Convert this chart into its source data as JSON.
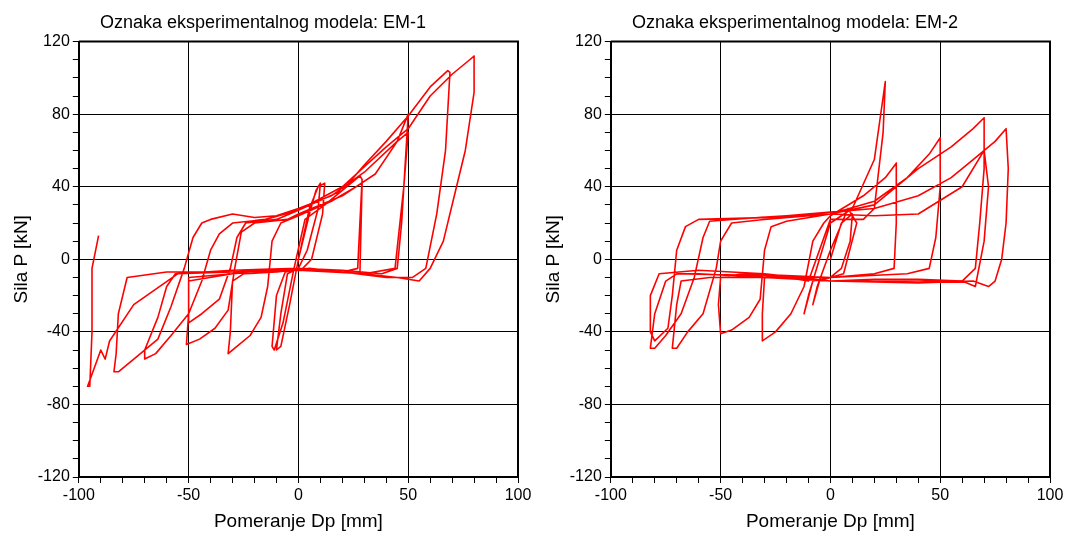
{
  "chart_data": [
    {
      "type": "line",
      "title": "Oznaka eksperimentalnog modela: EM-1",
      "xlabel": "Pomeranje Dp [mm]",
      "ylabel": "Sila P [kN]",
      "xlim": [
        -100,
        100
      ],
      "ylim": [
        -120,
        120
      ],
      "xticks": [
        -100,
        {
          "value": -90,
          "label": null
        },
        {
          "value": -80,
          "label": null
        },
        {
          "value": -70,
          "label": null
        },
        {
          "value": -60,
          "label": null
        },
        -50,
        {
          "value": -40,
          "label": null
        },
        {
          "value": -30,
          "label": null
        },
        {
          "value": -20,
          "label": null
        },
        {
          "value": -10,
          "label": null
        },
        0,
        {
          "value": 10,
          "label": null
        },
        {
          "value": 20,
          "label": null
        },
        {
          "value": 30,
          "label": null
        },
        {
          "value": 40,
          "label": null
        },
        50,
        {
          "value": 60,
          "label": null
        },
        {
          "value": 70,
          "label": null
        },
        {
          "value": 80,
          "label": null
        },
        {
          "value": 90,
          "label": null
        },
        100
      ],
      "yticks": [
        -120,
        {
          "value": -110,
          "label": null
        },
        {
          "value": -100,
          "label": null
        },
        {
          "value": -90,
          "label": null
        },
        -80,
        {
          "value": -70,
          "label": null
        },
        {
          "value": -60,
          "label": null
        },
        {
          "value": -50,
          "label": null
        },
        -40,
        {
          "value": -30,
          "label": null
        },
        {
          "value": -20,
          "label": null
        },
        {
          "value": -10,
          "label": null
        },
        0,
        {
          "value": 10,
          "label": null
        },
        {
          "value": 20,
          "label": null
        },
        {
          "value": 30,
          "label": null
        },
        40,
        {
          "value": 50,
          "label": null
        },
        {
          "value": 60,
          "label": null
        },
        {
          "value": 70,
          "label": null
        },
        80,
        {
          "value": 90,
          "label": null
        },
        {
          "value": 100,
          "label": null
        },
        {
          "value": 110,
          "label": null
        },
        120
      ],
      "grid": true,
      "marker": "none",
      "line_style": "solid",
      "series": [
        {
          "color": "#ff0000",
          "x": [
            0,
            5,
            8,
            10,
            9,
            4,
            0,
            -5,
            -8,
            -10,
            -8,
            -4,
            0,
            5,
            9,
            12,
            11,
            6,
            2,
            -6,
            -10,
            -12,
            -11,
            -7,
            -2,
            3,
            12,
            20,
            28,
            29,
            28,
            27,
            20,
            5,
            -10,
            -25,
            -30,
            -31,
            -32,
            -28,
            -22,
            -17,
            -14,
            -12,
            -8,
            0,
            15,
            29,
            28,
            0,
            -30,
            -50,
            -50,
            -51,
            -45,
            -38,
            -32,
            -29,
            -26,
            -20,
            -5,
            0,
            20,
            35,
            45,
            50,
            49,
            47,
            45,
            38,
            20,
            0,
            -30,
            -50,
            -50,
            -44,
            -36,
            -31,
            -28,
            -24,
            -10,
            0,
            20,
            30,
            40,
            50,
            60,
            68,
            69,
            67,
            63,
            58,
            52,
            40,
            20,
            0,
            -30,
            -56,
            -60,
            -64,
            -70,
            -70,
            -65,
            -58,
            -50,
            -44,
            -40,
            -36,
            -30,
            -15,
            0,
            20,
            40,
            50,
            60,
            70,
            78,
            80,
            80,
            76,
            71,
            66,
            60,
            55,
            45,
            30,
            0,
            -30,
            -60,
            -78,
            -82,
            -83,
            -84,
            -82,
            -74,
            -64,
            -58,
            -52,
            -48,
            -44,
            -40,
            -30,
            -20,
            -10,
            0,
            15,
            30,
            45,
            50,
            48,
            44,
            30,
            0,
            -30,
            -55,
            -75,
            -86,
            -88,
            -90,
            -93,
            -96,
            -95,
            -94,
            -94,
            -91
          ],
          "values": [
            0,
            25,
            38,
            42,
            28,
            5,
            -5,
            -8,
            -30,
            -50,
            -48,
            -25,
            0,
            28,
            40,
            42,
            25,
            0,
            -5,
            -7,
            -20,
            -48,
            -50,
            -35,
            -5,
            22,
            30,
            38,
            46,
            44,
            20,
            -5,
            -7,
            -5,
            -7,
            -8,
            -12,
            -40,
            -52,
            -48,
            -42,
            -32,
            -15,
            10,
            20,
            24,
            32,
            42,
            -8,
            -5,
            -8,
            -10,
            -30,
            -47,
            -44,
            -38,
            -28,
            -5,
            15,
            20,
            22,
            25,
            35,
            47,
            65,
            80,
            60,
            20,
            -5,
            -8,
            -6,
            -5,
            -8,
            -12,
            -35,
            -30,
            -22,
            -5,
            12,
            20,
            22,
            27,
            38,
            52,
            65,
            79,
            95,
            104,
            103,
            60,
            25,
            -5,
            -10,
            -10,
            -7,
            -5,
            -6,
            -8,
            -15,
            -32,
            -50,
            -55,
            -52,
            -42,
            -30,
            -12,
            5,
            14,
            20,
            22,
            27,
            40,
            62,
            72,
            90,
            102,
            110,
            112,
            92,
            60,
            35,
            10,
            -5,
            -12,
            -10,
            -8,
            -5,
            -7,
            -7,
            -10,
            -30,
            -52,
            -62,
            -62,
            -54,
            -44,
            -26,
            -5,
            12,
            20,
            22,
            25,
            23,
            24,
            28,
            35,
            48,
            65,
            70,
            40,
            -5,
            -8,
            -6,
            -7,
            -8,
            -25,
            -45,
            -55,
            -50,
            -60,
            -70,
            -70,
            -40,
            -5,
            13
          ]
        }
      ]
    },
    {
      "type": "line",
      "title": "Oznaka eksperimentalnog modela: EM-2",
      "xlabel": "Pomeranje Dp [mm]",
      "ylabel": "Sila P [kN]",
      "xlim": [
        -100,
        100
      ],
      "ylim": [
        -120,
        120
      ],
      "xticks": [
        -100,
        {
          "value": -90,
          "label": null
        },
        {
          "value": -80,
          "label": null
        },
        {
          "value": -70,
          "label": null
        },
        {
          "value": -60,
          "label": null
        },
        -50,
        {
          "value": -40,
          "label": null
        },
        {
          "value": -30,
          "label": null
        },
        {
          "value": -20,
          "label": null
        },
        {
          "value": -10,
          "label": null
        },
        0,
        {
          "value": 10,
          "label": null
        },
        {
          "value": 20,
          "label": null
        },
        {
          "value": 30,
          "label": null
        },
        {
          "value": 40,
          "label": null
        },
        50,
        {
          "value": 60,
          "label": null
        },
        {
          "value": 70,
          "label": null
        },
        {
          "value": 80,
          "label": null
        },
        {
          "value": 90,
          "label": null
        },
        100
      ],
      "yticks": [
        -120,
        {
          "value": -110,
          "label": null
        },
        {
          "value": -100,
          "label": null
        },
        {
          "value": -90,
          "label": null
        },
        -80,
        {
          "value": -70,
          "label": null
        },
        {
          "value": -60,
          "label": null
        },
        {
          "value": -50,
          "label": null
        },
        -40,
        {
          "value": -30,
          "label": null
        },
        {
          "value": -20,
          "label": null
        },
        {
          "value": -10,
          "label": null
        },
        0,
        {
          "value": 10,
          "label": null
        },
        {
          "value": 20,
          "label": null
        },
        {
          "value": 30,
          "label": null
        },
        40,
        {
          "value": 50,
          "label": null
        },
        {
          "value": 60,
          "label": null
        },
        {
          "value": 70,
          "label": null
        },
        80,
        {
          "value": 90,
          "label": null
        },
        {
          "value": 100,
          "label": null
        },
        {
          "value": 110,
          "label": null
        },
        120
      ],
      "grid": true,
      "marker": "none",
      "line_style": "solid",
      "series": [
        {
          "color": "#ff0000",
          "x": [
            0,
            5,
            10,
            9,
            5,
            0,
            -5,
            -8,
            -6,
            0,
            8,
            12,
            6,
            0,
            -8,
            -12,
            -10,
            -5,
            0,
            10,
            20,
            25,
            24,
            20,
            15,
            0,
            -10,
            -20,
            -30,
            -31,
            -31,
            -25,
            -18,
            -12,
            -8,
            -3,
            0,
            15,
            25,
            30,
            30,
            29,
            20,
            0,
            -20,
            -40,
            -50,
            -51,
            -50,
            -45,
            -37,
            -32,
            -30,
            -27,
            -20,
            0,
            20,
            35,
            45,
            50,
            50,
            48,
            45,
            35,
            0,
            -30,
            -55,
            -68,
            -70,
            -72,
            -70,
            -65,
            -58,
            -52,
            -50,
            -45,
            -30,
            0,
            20,
            40,
            55,
            65,
            70,
            70,
            68,
            66,
            60,
            40,
            20,
            0,
            -30,
            -60,
            -70,
            -75,
            -80,
            -82,
            -80,
            -75,
            -68,
            -62,
            -58,
            -55,
            -45,
            -20,
            0,
            20,
            40,
            55,
            65,
            75,
            80,
            81,
            80,
            78,
            75,
            72,
            65,
            40,
            0,
            -30,
            -60,
            -78,
            -82,
            -82,
            -80,
            -74,
            -72,
            -70,
            -66,
            -60,
            -30,
            0,
            20,
            40,
            60,
            70,
            72,
            70,
            66,
            60,
            30,
            0,
            -30,
            -70
          ],
          "values": [
            0,
            20,
            25,
            10,
            -5,
            -10,
            -12,
            -25,
            -15,
            5,
            28,
            20,
            -8,
            -10,
            -12,
            -30,
            -20,
            0,
            20,
            28,
            55,
            98,
            70,
            28,
            22,
            22,
            -12,
            -10,
            -10,
            -30,
            -45,
            -40,
            -30,
            -15,
            10,
            20,
            24,
            35,
            45,
            53,
            20,
            -5,
            -8,
            -10,
            -9,
            -8,
            -10,
            -25,
            -41,
            -39,
            -32,
            -22,
            5,
            18,
            21,
            25,
            32,
            45,
            58,
            67,
            40,
            12,
            -5,
            -8,
            -10,
            -10,
            -10,
            -12,
            -25,
            -49,
            -49,
            -40,
            -30,
            -5,
            10,
            20,
            22,
            25,
            30,
            50,
            62,
            72,
            78,
            50,
            20,
            -5,
            -12,
            -11,
            -11,
            -12,
            -10,
            -8,
            -8,
            -12,
            -30,
            -49,
            -49,
            -42,
            -30,
            -10,
            12,
            21,
            22,
            24,
            26,
            28,
            35,
            45,
            55,
            65,
            72,
            50,
            20,
            0,
            -12,
            -15,
            -12,
            -13,
            -12,
            -8,
            -6,
            -8,
            -20,
            -40,
            -45,
            -38,
            -20,
            5,
            18,
            22,
            23,
            25,
            24,
            25,
            40,
            60,
            40,
            10,
            -15,
            -12,
            -12,
            -12,
            -9,
            -8
          ]
        }
      ]
    }
  ]
}
